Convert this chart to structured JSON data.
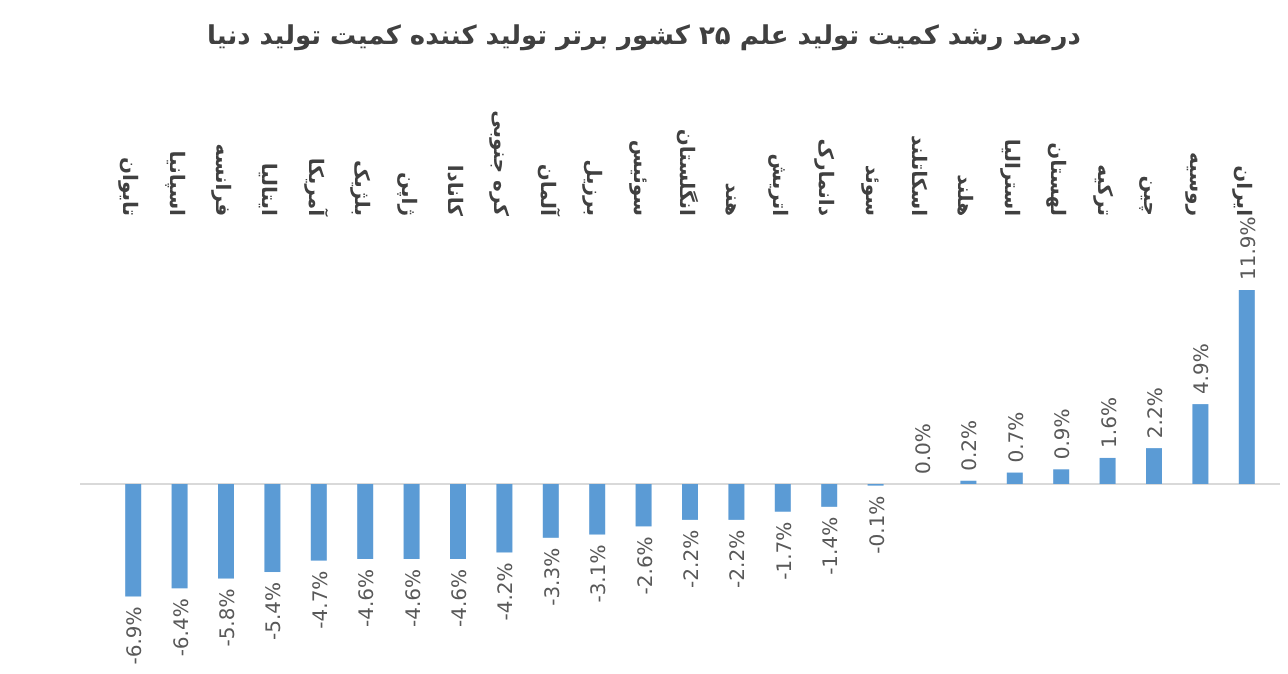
{
  "chart_data": {
    "type": "bar",
    "title": "درصد رشد کمیت تولید علم ۲۵ کشور برتر تولید کننده کمیت تولید دنیا",
    "categories": [
      "تایوان",
      "اسپانیا",
      "فرانسه",
      "ایتالیا",
      "آمریکا",
      "بلژیک",
      "ژاپن",
      "کانادا",
      "کره جنوبی",
      "آلمان",
      "برزیل",
      "سوئیس",
      "انگلستان",
      "هند",
      "اتریش",
      "دانمارک",
      "سوئد",
      "اسکاتلند",
      "هلند",
      "استرالیا",
      "لهستان",
      "ترکیه",
      "چین",
      "روسیه",
      "ایران"
    ],
    "values": [
      -6.9,
      -6.4,
      -5.8,
      -5.4,
      -4.7,
      -4.6,
      -4.6,
      -4.6,
      -4.2,
      -3.3,
      -3.1,
      -2.6,
      -2.2,
      -2.2,
      -1.7,
      -1.4,
      -0.1,
      0.0,
      0.2,
      0.7,
      0.9,
      1.6,
      2.2,
      4.9,
      11.9
    ],
    "value_labels": [
      "-6.9%",
      "-6.4%",
      "-5.8%",
      "-5.4%",
      "-4.7%",
      "-4.6%",
      "-4.6%",
      "-4.6%",
      "-4.2%",
      "-3.3%",
      "-3.1%",
      "-2.6%",
      "-2.2%",
      "-2.2%",
      "-1.7%",
      "-1.4%",
      "-0.1%",
      "0.0%",
      "0.2%",
      "0.7%",
      "0.9%",
      "1.6%",
      "2.2%",
      "4.9%",
      "11.9%"
    ],
    "color": "#5b9bd5"
  }
}
